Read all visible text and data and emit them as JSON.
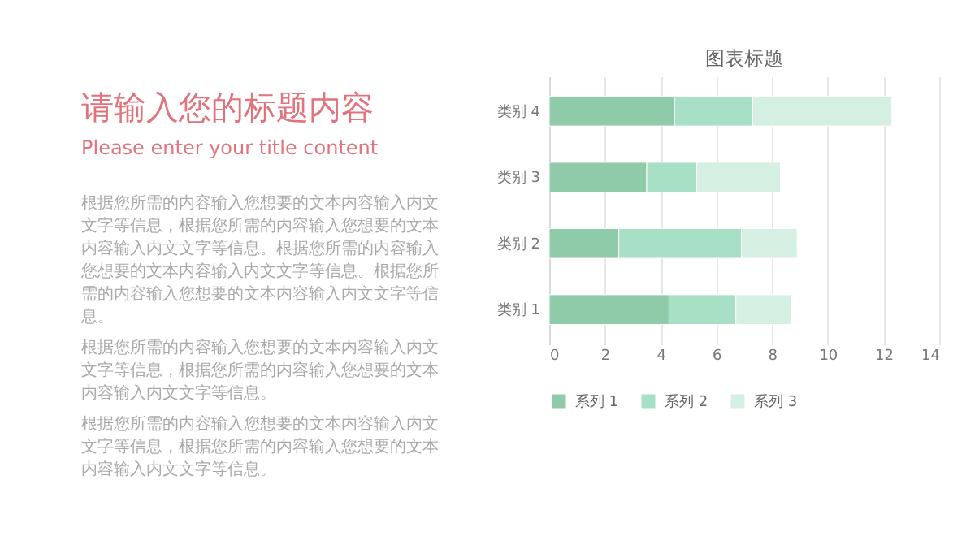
{
  "chart_data": [
    {
      "type": "other",
      "title": "请输入您的标题内容",
      "subtitle": "Please enter your title content",
      "annotations": [
        "根据您所需的内容输入您想要的文本内容输入内文文字等信息，根据您所需的内容输入您想要的文本内容输入内文文字等信息。根据您所需的内容输入您想要的文本内容输入内文文字等信息。根据您所需的内容输入您想要的文本内容输入内文文字等信息。",
        "根据您所需的内容输入您想要的文本内容输入内文文字等信息，根据您所需的内容输入您想要的文本内容输入内文文字等信息。",
        "根据您所需的内容输入您想要的文本内容输入内文文字等信息，根据您所需的内容输入您想要的文本内容输入内文文字等信息。"
      ]
    },
    {
      "type": "bar",
      "title": "图表标题",
      "orientation": "horizontal",
      "stacked": true,
      "categories": [
        "类别 4",
        "类别 3",
        "类别 2",
        "类别 1"
      ],
      "series": [
        {
          "name": "系列 1",
          "color": "#8fcaa9",
          "values": [
            4.5,
            3.5,
            2.5,
            4.3
          ]
        },
        {
          "name": "系列 2",
          "color": "#a8e0c5",
          "values": [
            2.8,
            1.8,
            4.4,
            2.4
          ]
        },
        {
          "name": "系列 3",
          "color": "#d6efe3",
          "values": [
            5,
            3,
            2,
            2
          ]
        }
      ],
      "xlim": [
        0,
        14
      ],
      "xticks": [
        0,
        2,
        4,
        6,
        8,
        10,
        12,
        14
      ],
      "grid": "x",
      "legend": "bottom"
    }
  ]
}
